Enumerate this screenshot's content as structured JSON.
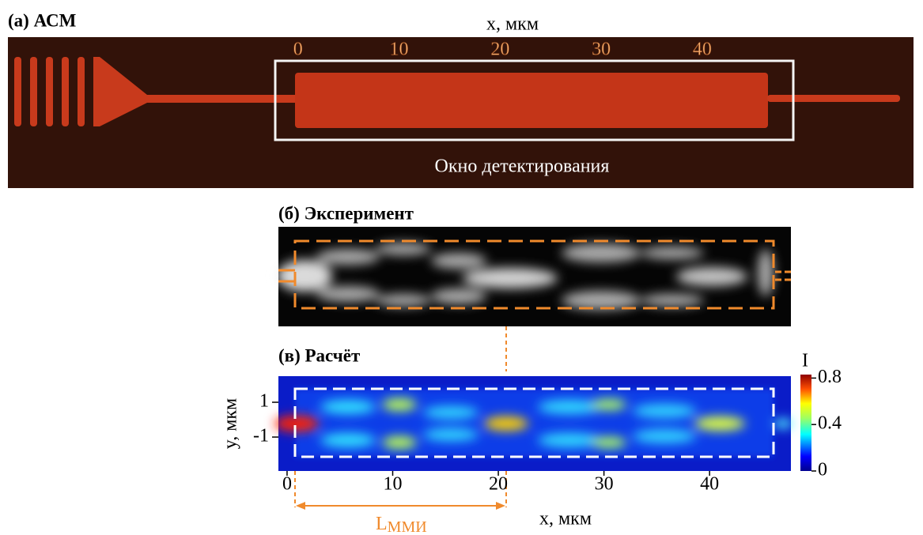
{
  "panel_a": {
    "title": "(a) АСМ",
    "x_label": "x, мкм",
    "xlim": [
      -28.7,
      60.9
    ],
    "xticks": [
      0,
      10,
      20,
      30,
      40
    ],
    "window_label": "Окно детектирования"
  },
  "panel_b": {
    "title": "(б) Эксперимент"
  },
  "panel_c": {
    "title": "(в) Расчёт",
    "x_label": "x, мкм",
    "y_label": "y, мкм",
    "xlim": [
      -0.82,
      47.7
    ],
    "xticks": [
      0,
      10,
      20,
      30,
      40
    ],
    "ylim": [
      -2.95,
      2.5
    ],
    "yticks": [
      1,
      -1
    ],
    "colorbar": {
      "label": "I",
      "lim": [
        0,
        0.83
      ],
      "ticks": [
        0.8,
        0.4,
        0
      ]
    },
    "length_label": "L",
    "length_subscript": "ММИ"
  }
}
